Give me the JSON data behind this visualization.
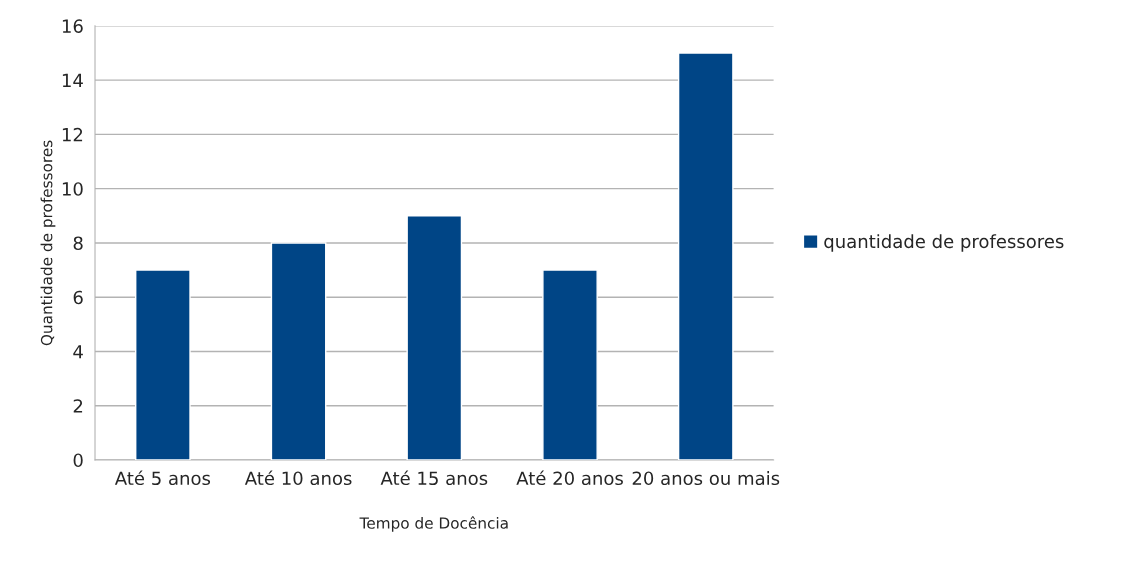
{
  "chart_data": {
    "type": "bar",
    "xlabel": "Tempo de Docência",
    "ylabel": "Quantidade de professores",
    "categories": [
      "Até 5 anos",
      "Até 10 anos",
      "Até 15 anos",
      "Até 20 anos",
      "20 anos ou mais"
    ],
    "series": [
      {
        "name": "quantidade de professores",
        "color": "#004586",
        "values": [
          7,
          8,
          9,
          7,
          15
        ]
      }
    ],
    "ylim": [
      0,
      16
    ],
    "yticks": [
      0,
      2,
      4,
      6,
      8,
      10,
      12,
      14,
      16
    ],
    "grid": "y",
    "legend": "right"
  }
}
